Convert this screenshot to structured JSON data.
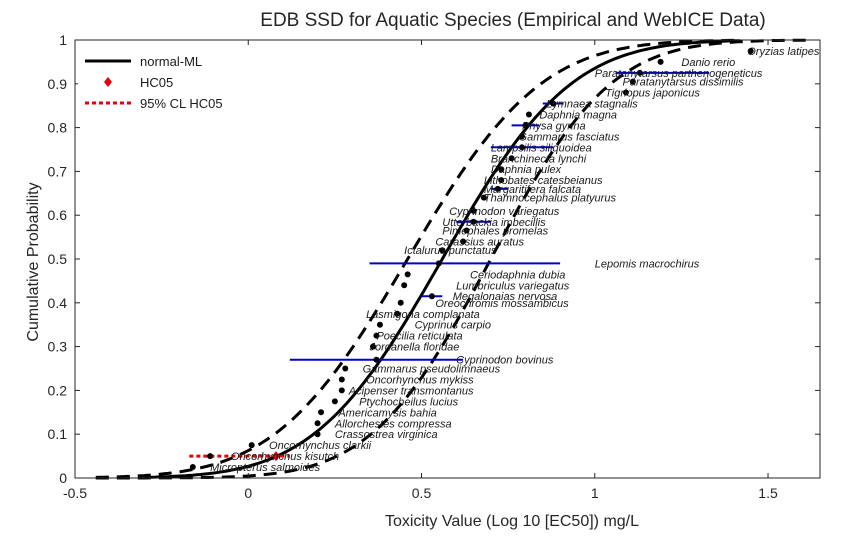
{
  "chart_data": {
    "type": "scatter",
    "title": "EDB SSD for Aquatic Species (Empirical and WebICE Data)",
    "xlabel": "Toxicity Value (Log 10 [EC50]) mg/L",
    "ylabel": "Cumulative Probability",
    "xlim": [
      -0.5,
      1.65
    ],
    "ylim": [
      0,
      1
    ],
    "x_ticks": [
      "-0.5",
      "0",
      "0.5",
      "1",
      "1.5"
    ],
    "y_ticks": [
      "0",
      "0.1",
      "0.2",
      "0.3",
      "0.4",
      "0.5",
      "0.6",
      "0.7",
      "0.8",
      "0.9",
      "1"
    ],
    "grid": false,
    "legend_position": "top-left",
    "legend": [
      {
        "label": "normal-ML",
        "style": "solid",
        "color": "#000000"
      },
      {
        "label": "HC05",
        "style": "marker",
        "color": "#e8000b"
      },
      {
        "label": "95% CL HC05",
        "style": "dotted",
        "color": "#e8000b"
      }
    ],
    "fitted_curve": {
      "name": "normal-ML",
      "mean": 0.56,
      "sd": 0.29
    },
    "confidence_bands": [
      {
        "mean": 0.46,
        "sd": 0.3
      },
      {
        "mean": 0.7,
        "sd": 0.27
      }
    ],
    "hc05": {
      "x": 0.08,
      "y": 0.05,
      "ci": [
        -0.17,
        0.12
      ]
    },
    "points": [
      {
        "label": "Micropterus salmoides",
        "x": -0.16,
        "y": 0.025,
        "label_x": -0.11
      },
      {
        "label": "Oncorhynchus kisutch",
        "x": -0.11,
        "y": 0.05,
        "label_x": -0.05
      },
      {
        "label": "Oncorhynchus clarkii",
        "x": 0.01,
        "y": 0.075,
        "label_x": 0.06
      },
      {
        "label": "Crassostrea virginica",
        "x": 0.2,
        "y": 0.1,
        "label_x": 0.25
      },
      {
        "label": "Allorchestes compressa",
        "x": 0.2,
        "y": 0.125,
        "label_x": 0.25
      },
      {
        "label": "Americamysis bahia",
        "x": 0.21,
        "y": 0.15,
        "label_x": 0.26
      },
      {
        "label": "Ptychocheilus lucius",
        "x": 0.25,
        "y": 0.175,
        "label_x": 0.32
      },
      {
        "label": "Acipenser transmontanus",
        "x": 0.27,
        "y": 0.2,
        "label_x": 0.29
      },
      {
        "label": "Oncorhynchus mykiss",
        "x": 0.27,
        "y": 0.225,
        "label_x": 0.34
      },
      {
        "label": "Gammarus pseudolimnaeus",
        "x": 0.28,
        "y": 0.25,
        "label_x": 0.33
      },
      {
        "label": "Cyprinodon bovinus",
        "x": 0.37,
        "y": 0.27,
        "label_x": 0.6,
        "ci": [
          0.12,
          0.62
        ]
      },
      {
        "label": "Jordanella floridae",
        "x": 0.36,
        "y": 0.3,
        "label_x": 0.35
      },
      {
        "label": "Poecilia reticulata",
        "x": 0.37,
        "y": 0.325,
        "label_x": 0.37
      },
      {
        "label": "Cyprinus carpio",
        "x": 0.38,
        "y": 0.35,
        "label_x": 0.48
      },
      {
        "label": "Lasmigona complanata",
        "x": 0.43,
        "y": 0.375,
        "label_x": 0.34
      },
      {
        "label": "Oreochromis mossambicus",
        "x": 0.44,
        "y": 0.4,
        "label_x": 0.54
      },
      {
        "label": "Megalonaias nervosa",
        "x": 0.53,
        "y": 0.415,
        "label_x": 0.59,
        "ci": [
          0.5,
          0.56
        ]
      },
      {
        "label": "Lumbriculus variegatus",
        "x": 0.45,
        "y": 0.44,
        "label_x": 0.6
      },
      {
        "label": "Ceriodaphnia dubia",
        "x": 0.46,
        "y": 0.465,
        "label_x": 0.64
      },
      {
        "label": "Lepomis macrochirus",
        "x": 0.55,
        "y": 0.49,
        "label_x": 1.0,
        "ci": [
          0.35,
          0.9
        ]
      },
      {
        "label": "Ictalurus punctatus",
        "x": 0.56,
        "y": 0.52,
        "label_x": 0.45
      },
      {
        "label": "Carassius auratus",
        "x": 0.62,
        "y": 0.54,
        "label_x": 0.54
      },
      {
        "label": "Pimephales promelas",
        "x": 0.63,
        "y": 0.565,
        "label_x": 0.56
      },
      {
        "label": "Utterbackia imbecillis",
        "x": 0.65,
        "y": 0.585,
        "label_x": 0.56,
        "ci": [
          0.6,
          0.7
        ]
      },
      {
        "label": "Cyprinodon variegatus",
        "x": 0.65,
        "y": 0.61,
        "label_x": 0.58
      },
      {
        "label": "Thamnocephalus platyurus",
        "x": 0.68,
        "y": 0.64,
        "label_x": 0.68
      },
      {
        "label": "Margaritifera falcata",
        "x": 0.72,
        "y": 0.66,
        "label_x": 0.68,
        "ci": [
          0.7,
          0.75
        ]
      },
      {
        "label": "Lithobates catesbeianus",
        "x": 0.73,
        "y": 0.68,
        "label_x": 0.68
      },
      {
        "label": "Daphnia pulex",
        "x": 0.73,
        "y": 0.705,
        "label_x": 0.7
      },
      {
        "label": "Branchinecta lynchi",
        "x": 0.76,
        "y": 0.73,
        "label_x": 0.7
      },
      {
        "label": "Lampsilis siliquoidea",
        "x": 0.79,
        "y": 0.755,
        "label_x": 0.7,
        "ci": [
          0.7,
          0.88
        ]
      },
      {
        "label": "Gammarus fasciatus",
        "x": 0.79,
        "y": 0.78,
        "label_x": 0.78
      },
      {
        "label": "Physa gyrina",
        "x": 0.8,
        "y": 0.805,
        "label_x": 0.79,
        "ci": [
          0.76,
          0.84
        ]
      },
      {
        "label": "Daphnia magna",
        "x": 0.81,
        "y": 0.83,
        "label_x": 0.84
      },
      {
        "label": "Lymnaea stagnalis",
        "x": 0.88,
        "y": 0.855,
        "label_x": 0.86,
        "ci": [
          0.85,
          0.91
        ]
      },
      {
        "label": "Tigriopus japonicus",
        "x": 1.09,
        "y": 0.88,
        "label_x": 1.03
      },
      {
        "label": "Paratanytarsus dissimilis",
        "x": 1.11,
        "y": 0.905,
        "label_x": 1.08
      },
      {
        "label": "Paratanytarsus parthenogeneticus",
        "x": 1.13,
        "y": 0.925,
        "label_x": 1.0,
        "ci": [
          1.06,
          1.33
        ]
      },
      {
        "label": "Danio rerio",
        "x": 1.19,
        "y": 0.95,
        "label_x": 1.25
      },
      {
        "label": "Oryzias latipes",
        "x": 1.45,
        "y": 0.975,
        "label_x": 1.44
      }
    ]
  }
}
